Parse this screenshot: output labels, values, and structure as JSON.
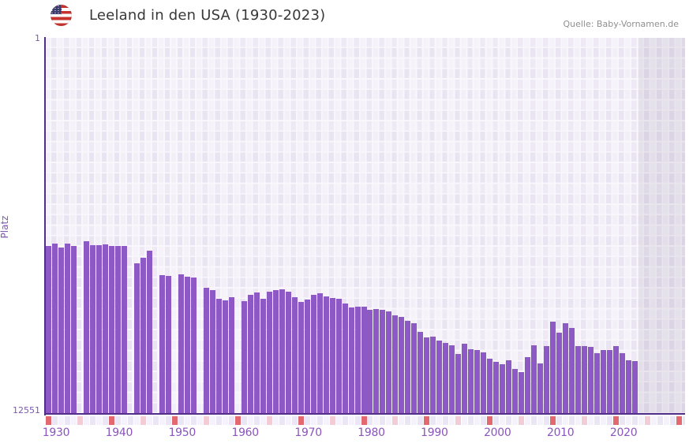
{
  "header": {
    "title": "Leeland in den USA (1930-2023)",
    "source": "Quelle: Baby-Vornamen.de",
    "flag_icon": "us-flag"
  },
  "axes": {
    "y_title": "Platz",
    "y_top_label": "1",
    "y_bottom_label": "12551",
    "x_ticks": [
      "1930",
      "1940",
      "1950",
      "1960",
      "1970",
      "1980",
      "1990",
      "2000",
      "2010",
      "2020"
    ]
  },
  "timeline": {
    "start_year": 1930,
    "end_year": 2031,
    "decade_marker_color": "#e2696f",
    "half_decade_marker_color": "#f2ccd6",
    "cell_colors": [
      "#f5f2fb",
      "#ebe6f5"
    ]
  },
  "chart_data": {
    "type": "bar",
    "title": "Leeland in den USA (1930-2023)",
    "xlabel": "",
    "ylabel": "Platz",
    "y_axis_inverted": true,
    "ylim": [
      1,
      12551
    ],
    "x_range_years": [
      1930,
      2031
    ],
    "data_end_year": 2023,
    "bar_color": "#8d59c4",
    "grid": true,
    "note": "Rank (Platz) per year; missing years have no bar",
    "years": [
      1930,
      1931,
      1932,
      1933,
      1934,
      1935,
      1936,
      1937,
      1938,
      1939,
      1940,
      1941,
      1942,
      1943,
      1944,
      1945,
      1946,
      1947,
      1948,
      1949,
      1950,
      1951,
      1952,
      1953,
      1954,
      1955,
      1956,
      1957,
      1958,
      1959,
      1960,
      1961,
      1962,
      1963,
      1964,
      1965,
      1966,
      1967,
      1968,
      1969,
      1970,
      1971,
      1972,
      1973,
      1974,
      1975,
      1976,
      1977,
      1978,
      1979,
      1980,
      1981,
      1982,
      1983,
      1984,
      1985,
      1986,
      1987,
      1988,
      1989,
      1990,
      1991,
      1992,
      1993,
      1994,
      1995,
      1996,
      1997,
      1998,
      1999,
      2000,
      2001,
      2002,
      2003,
      2004,
      2005,
      2006,
      2007,
      2008,
      2009,
      2010,
      2011,
      2012,
      2013,
      2014,
      2015,
      2016,
      2017,
      2018,
      2019,
      2020,
      2021,
      2022,
      2023
    ],
    "ranks": [
      6950,
      6870,
      7000,
      6880,
      6950,
      null,
      6800,
      6920,
      6920,
      6890,
      6950,
      6950,
      6960,
      null,
      7530,
      7340,
      7100,
      null,
      7910,
      7940,
      null,
      7890,
      7970,
      8010,
      null,
      8340,
      8420,
      8700,
      8760,
      8650,
      null,
      8800,
      8570,
      8510,
      8720,
      8460,
      8430,
      8390,
      8470,
      8660,
      8810,
      8740,
      8580,
      8520,
      8640,
      8680,
      8710,
      8880,
      9000,
      8980,
      8960,
      9090,
      9050,
      9070,
      9140,
      9250,
      9320,
      9440,
      9530,
      9810,
      10000,
      9970,
      10100,
      10180,
      10270,
      10560,
      10210,
      10390,
      10420,
      10500,
      10700,
      10820,
      10900,
      10760,
      11060,
      11160,
      10660,
      10260,
      10880,
      10280,
      9465,
      9830,
      9525,
      9675,
      10280,
      10300,
      10320,
      10520,
      10430,
      10430,
      10290,
      10530,
      10770,
      10800
    ]
  }
}
